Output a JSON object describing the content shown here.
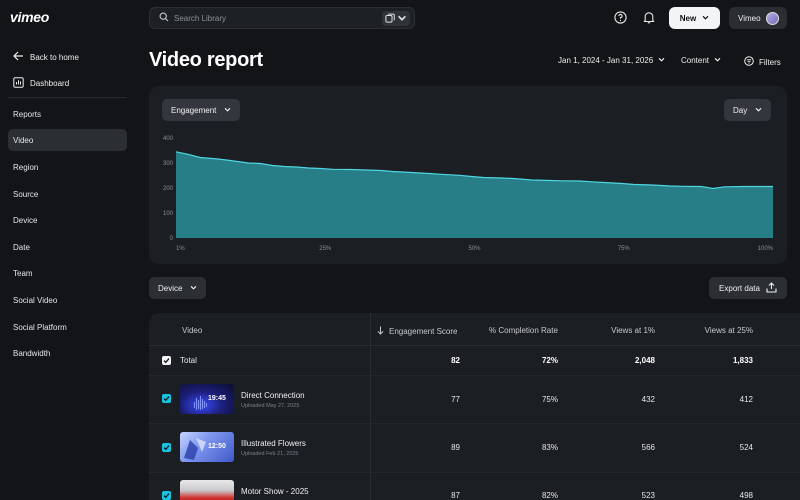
{
  "brand": {
    "logo": "vimeo"
  },
  "search": {
    "placeholder": "Search Library"
  },
  "topbar": {
    "new_label": "New",
    "account_label": "Vimeo"
  },
  "sidebar": {
    "back_label": "Back to home",
    "dashboard_label": "Dashboard",
    "items": [
      {
        "label": "Reports",
        "active": false
      },
      {
        "label": "Video",
        "active": true
      },
      {
        "label": "Region",
        "active": false
      },
      {
        "label": "Source",
        "active": false
      },
      {
        "label": "Device",
        "active": false
      },
      {
        "label": "Date",
        "active": false
      },
      {
        "label": "Team",
        "active": false
      },
      {
        "label": "Social Video",
        "active": false
      },
      {
        "label": "Social Platform",
        "active": false
      },
      {
        "label": "Bandwidth",
        "active": false
      }
    ]
  },
  "header": {
    "title": "Video report",
    "date_range": "Jan 1, 2024 - Jan 31, 2026",
    "content_label": "Content",
    "filters_label": "Filters"
  },
  "chart_controls": {
    "metric": "Engagement",
    "interval": "Day"
  },
  "chart_data": {
    "type": "area",
    "title": "",
    "xlabel": "",
    "ylabel": "",
    "ylim": [
      0,
      400
    ],
    "yticks": [
      "400",
      "300",
      "200",
      "100",
      "0"
    ],
    "xticks": [
      "1%",
      "25%",
      "50%",
      "75%",
      "100%"
    ],
    "color": "#2a8f99",
    "line_color": "#4fd6e2",
    "x": [
      1,
      3,
      5,
      8,
      10,
      13,
      15,
      17,
      19,
      21,
      23,
      25,
      27,
      30,
      35,
      37,
      40,
      43,
      45,
      48,
      50,
      52,
      55,
      57,
      60,
      63,
      65,
      68,
      70,
      72,
      75,
      77,
      80,
      83,
      85,
      88,
      89,
      90,
      92,
      95,
      100
    ],
    "values": [
      345,
      335,
      322,
      316,
      310,
      300,
      298,
      290,
      286,
      284,
      280,
      278,
      275,
      274,
      270,
      266,
      262,
      258,
      255,
      251,
      246,
      242,
      240,
      238,
      232,
      230,
      229,
      228,
      225,
      222,
      218,
      214,
      212,
      208,
      207,
      206,
      203,
      198,
      205,
      206,
      206
    ]
  },
  "device_label": "Device",
  "export_label": "Export data",
  "table": {
    "columns": [
      "Video",
      "Engagement Score",
      "% Completion Rate",
      "Views at 1%",
      "Views at 25%"
    ],
    "total": {
      "label": "Total",
      "engagement": "82",
      "completion": "72%",
      "views1": "2,048",
      "views25": "1,833"
    },
    "rows": [
      {
        "title": "Direct Connection",
        "uploaded": "Uploaded May 27, 2025",
        "duration": "19:45",
        "engagement": "77",
        "completion": "75%",
        "views1": "432",
        "views25": "412"
      },
      {
        "title": "Illustrated Flowers",
        "uploaded": "Uploaded Feb 21, 2025",
        "duration": "12:50",
        "engagement": "89",
        "completion": "83%",
        "views1": "566",
        "views25": "524"
      },
      {
        "title": "Motor Show - 2025",
        "uploaded": "",
        "duration": "",
        "engagement": "87",
        "completion": "82%",
        "views1": "523",
        "views25": "498"
      }
    ]
  }
}
